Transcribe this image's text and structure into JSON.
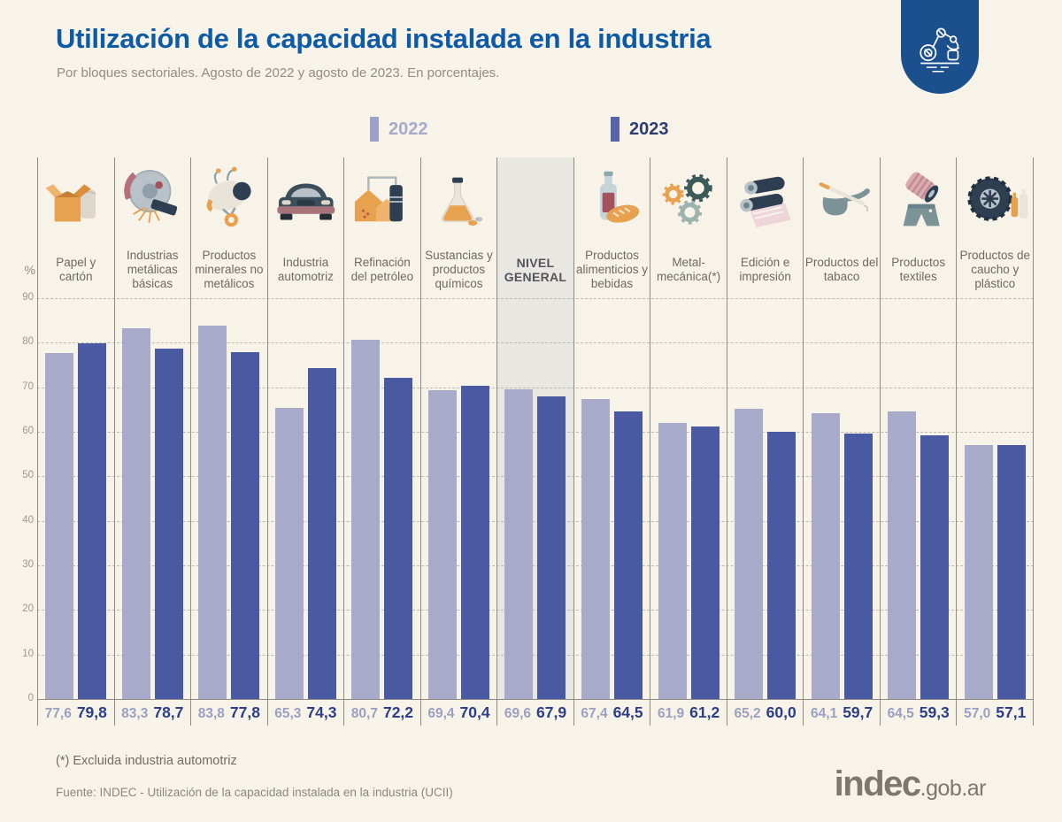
{
  "header": {
    "title": "Utilización de la capacidad instalada en la industria",
    "subtitle": "Por bloques sectoriales. Agosto de 2022 y agosto de 2023. En porcentajes.",
    "badge_icon": "robot-arm-icon",
    "badge_color": "#1b4f8e"
  },
  "legend": [
    {
      "label": "2022",
      "swatch_color": "#9ba0c6",
      "text_color": "#a6aacb"
    },
    {
      "label": "2023",
      "swatch_color": "#5a64ab",
      "text_color": "#2c3c6e"
    }
  ],
  "chart_data": {
    "type": "bar",
    "title": "Utilización de la capacidad instalada en la industria",
    "subtitle": "Por bloques sectoriales. Agosto de 2022 y agosto de 2023. En porcentajes.",
    "ylabel": "%",
    "ylim": [
      0,
      90
    ],
    "ytick_step": 10,
    "grid": "horizontal-dashed",
    "legend_position": "top-center",
    "categories": [
      "Papel y cartón",
      "Industrias metálicas básicas",
      "Productos minerales no metálicos",
      "Industria automotriz",
      "Refinación del petróleo",
      "Sustancias y productos químicos",
      "NIVEL GENERAL",
      "Productos alimenticios y bebidas",
      "Metal-mecánica(*)",
      "Edición e impresión",
      "Productos del tabaco",
      "Productos textiles",
      "Productos de caucho y plástico"
    ],
    "category_icons": [
      "cardboard-box-icon",
      "metal-grinder-icon",
      "cement-mixer-icon",
      "car-icon",
      "oil-refinery-icon",
      "chemical-flask-icon",
      null,
      "bottle-bread-icon",
      "gears-icon",
      "printing-rolls-icon",
      "tobacco-pipe-icon",
      "textile-shorts-icon",
      "tire-bottles-icon"
    ],
    "highlight_category": "NIVEL GENERAL",
    "series": [
      {
        "name": "2022",
        "color": "#a7aac9",
        "label_color": "#9ba0c2",
        "values": [
          77.6,
          83.3,
          83.8,
          65.3,
          80.7,
          69.4,
          69.6,
          67.4,
          61.9,
          65.2,
          64.1,
          64.5,
          57.0
        ]
      },
      {
        "name": "2023",
        "color": "#4a5aa2",
        "label_color": "#2c3e87",
        "values": [
          79.8,
          78.7,
          77.8,
          74.3,
          72.2,
          70.4,
          67.9,
          64.5,
          61.2,
          60.0,
          59.7,
          59.3,
          57.1
        ]
      }
    ],
    "value_labels": [
      [
        "77,6",
        "79,8"
      ],
      [
        "83,3",
        "78,7"
      ],
      [
        "83,8",
        "77,8"
      ],
      [
        "65,3",
        "74,3"
      ],
      [
        "80,7",
        "72,2"
      ],
      [
        "69,4",
        "70,4"
      ],
      [
        "69,6",
        "67,9"
      ],
      [
        "67,4",
        "64,5"
      ],
      [
        "61,9",
        "61,2"
      ],
      [
        "65,2",
        "60,0"
      ],
      [
        "64,1",
        "59,7"
      ],
      [
        "64,5",
        "59,3"
      ],
      [
        "57,0",
        "57,1"
      ]
    ]
  },
  "footer": {
    "footnote": "(*) Excluida industria automotriz",
    "source": "Fuente: INDEC - Utilización de la capacidad instalada en la industria (UCII)",
    "logo_main": "indec",
    "logo_suffix": ".gob.ar"
  }
}
